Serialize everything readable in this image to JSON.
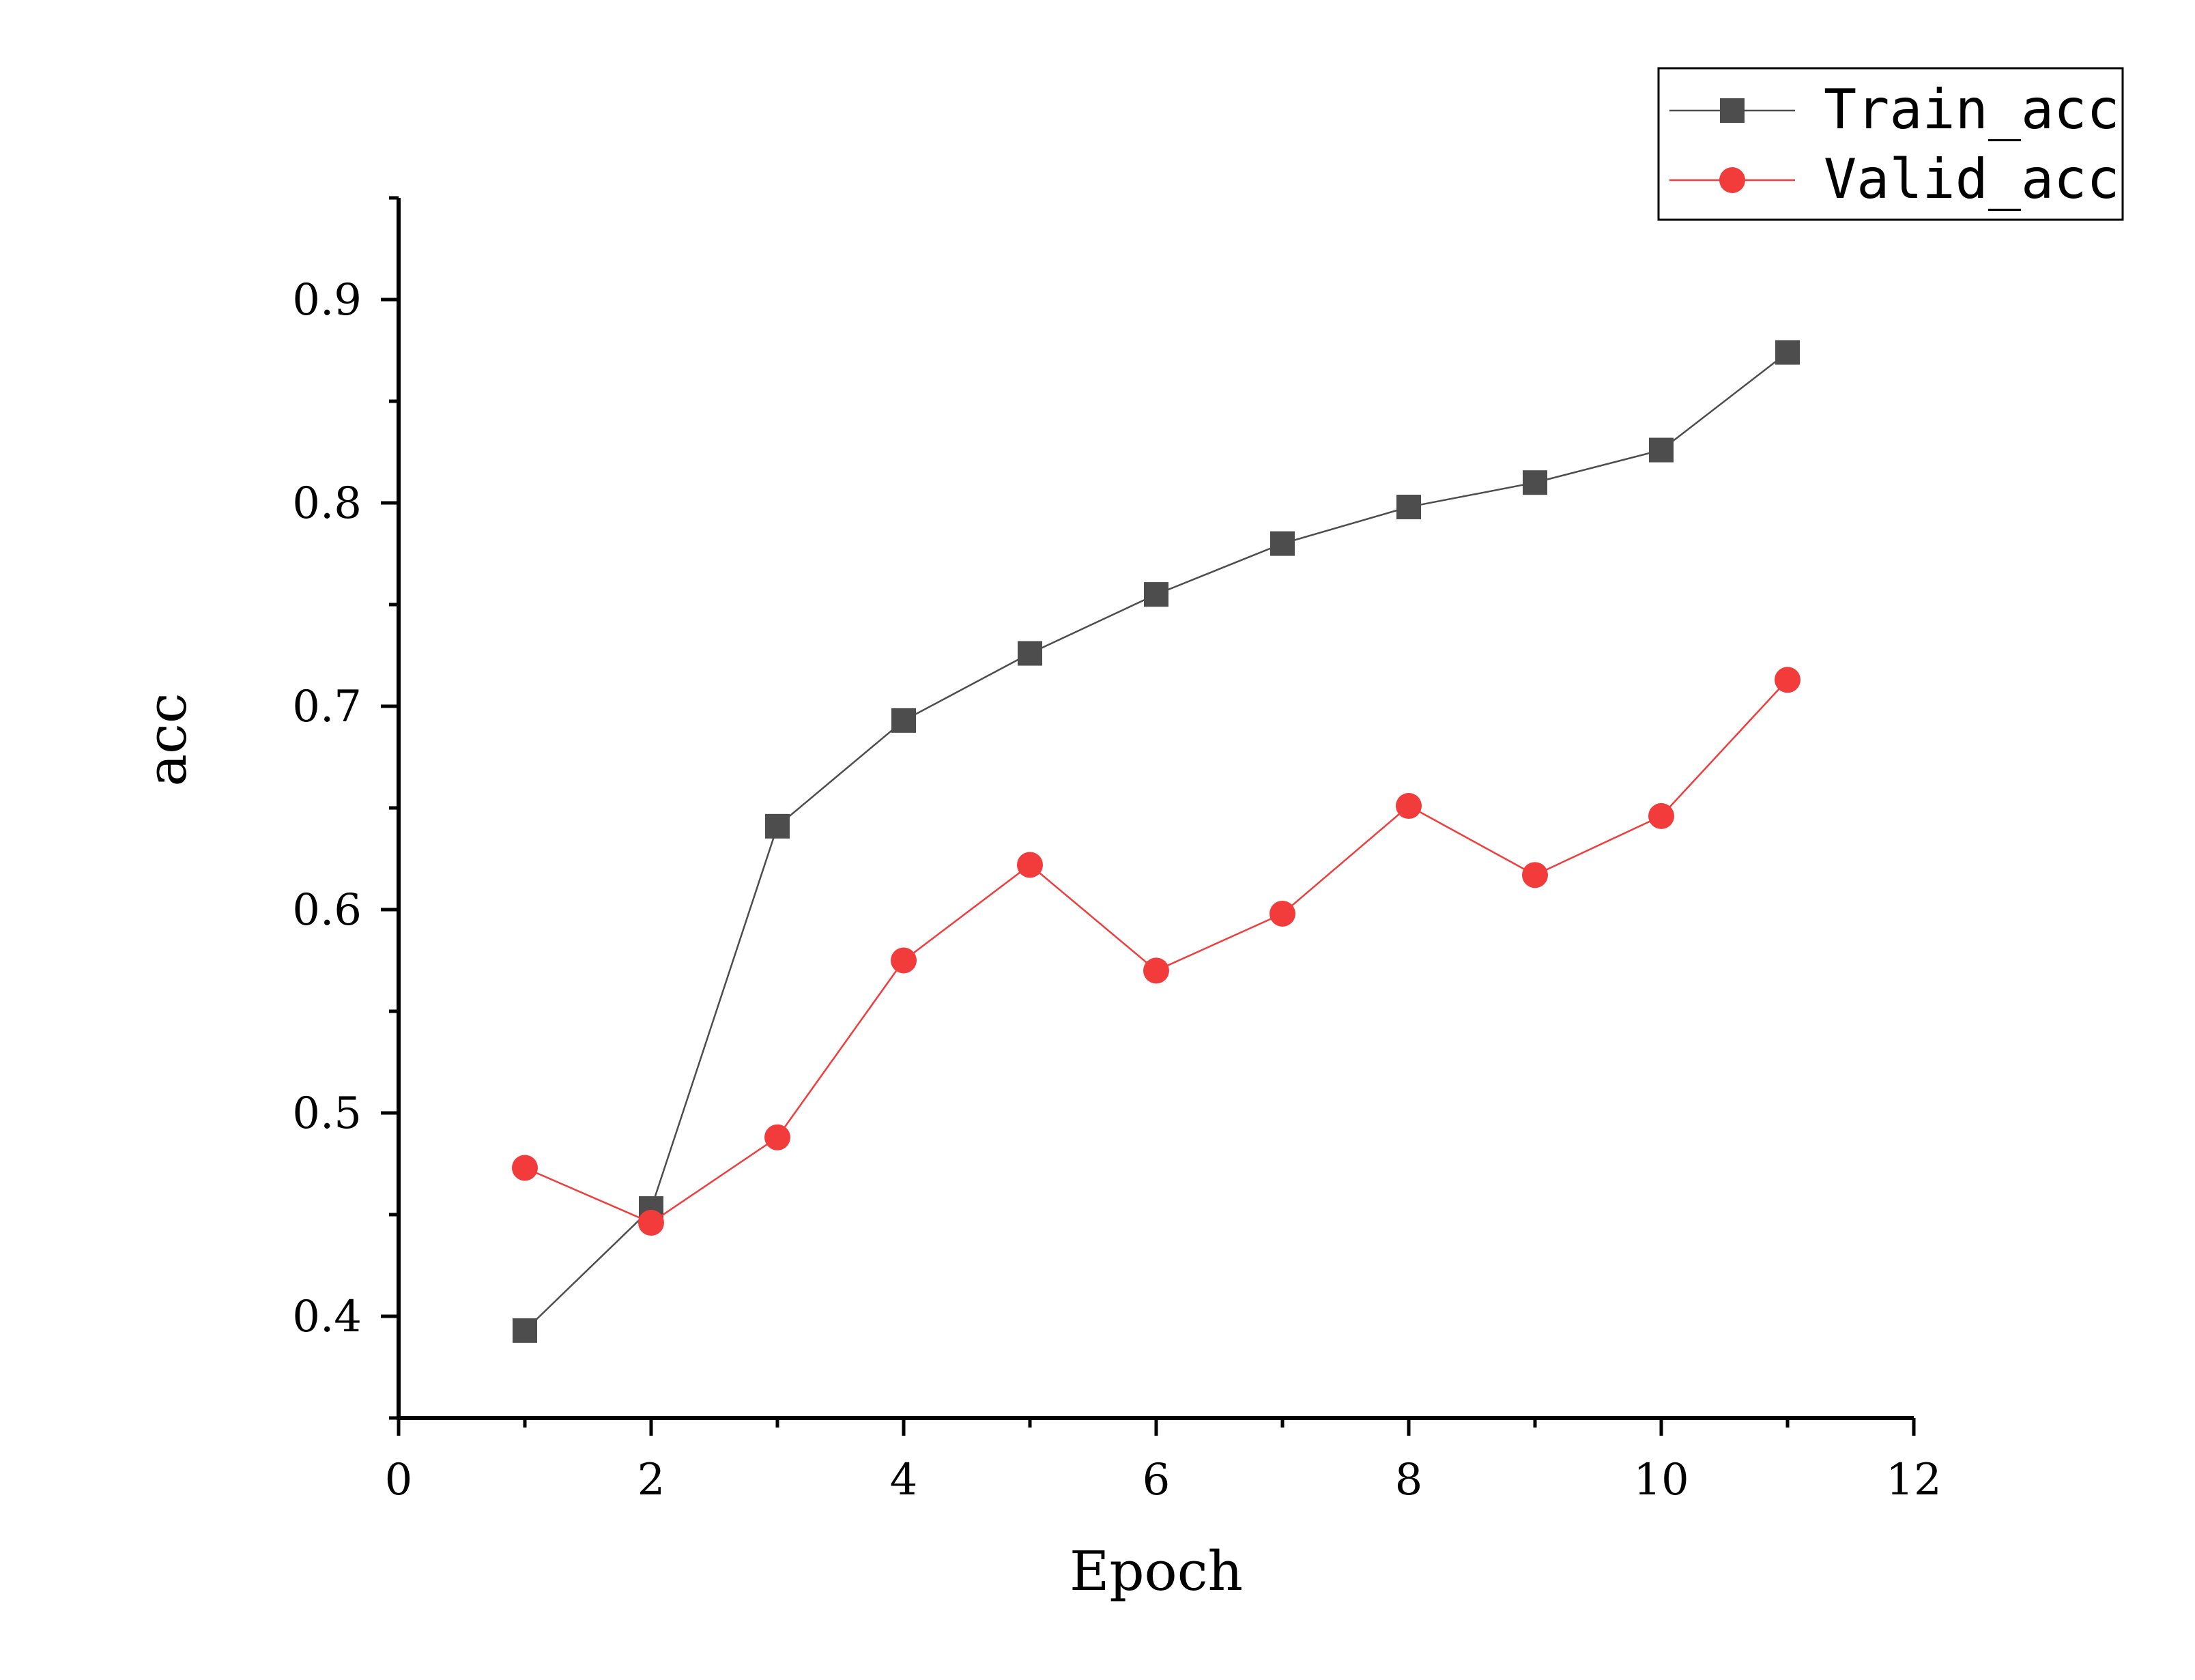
{
  "chart_data": {
    "type": "line",
    "title": "",
    "xlabel": "Epoch",
    "ylabel": "acc",
    "xlim": [
      0,
      12
    ],
    "ylim": [
      0.35,
      0.95
    ],
    "xticks": [
      0,
      2,
      4,
      6,
      8,
      10,
      12
    ],
    "yticks": [
      0.4,
      0.5,
      0.6,
      0.7,
      0.8,
      0.9
    ],
    "xtick_labels": [
      "0",
      "2",
      "4",
      "6",
      "8",
      "10",
      "12"
    ],
    "ytick_labels": [
      "0.4",
      "0.5",
      "0.6",
      "0.7",
      "0.8",
      "0.9"
    ],
    "grid": false,
    "legend_position": "top-right",
    "x": [
      1,
      2,
      3,
      4,
      5,
      6,
      7,
      8,
      9,
      10,
      11
    ],
    "series": [
      {
        "name": "Train_acc",
        "color": "#4d4d4d",
        "marker": "square",
        "values": [
          0.393,
          0.453,
          0.641,
          0.693,
          0.726,
          0.755,
          0.78,
          0.798,
          0.81,
          0.826,
          0.874
        ]
      },
      {
        "name": "Valid_acc",
        "color": "#f23c3c",
        "marker": "circle",
        "values": [
          0.473,
          0.446,
          0.488,
          0.575,
          0.622,
          0.57,
          0.598,
          0.651,
          0.617,
          0.646,
          0.713
        ]
      }
    ]
  }
}
